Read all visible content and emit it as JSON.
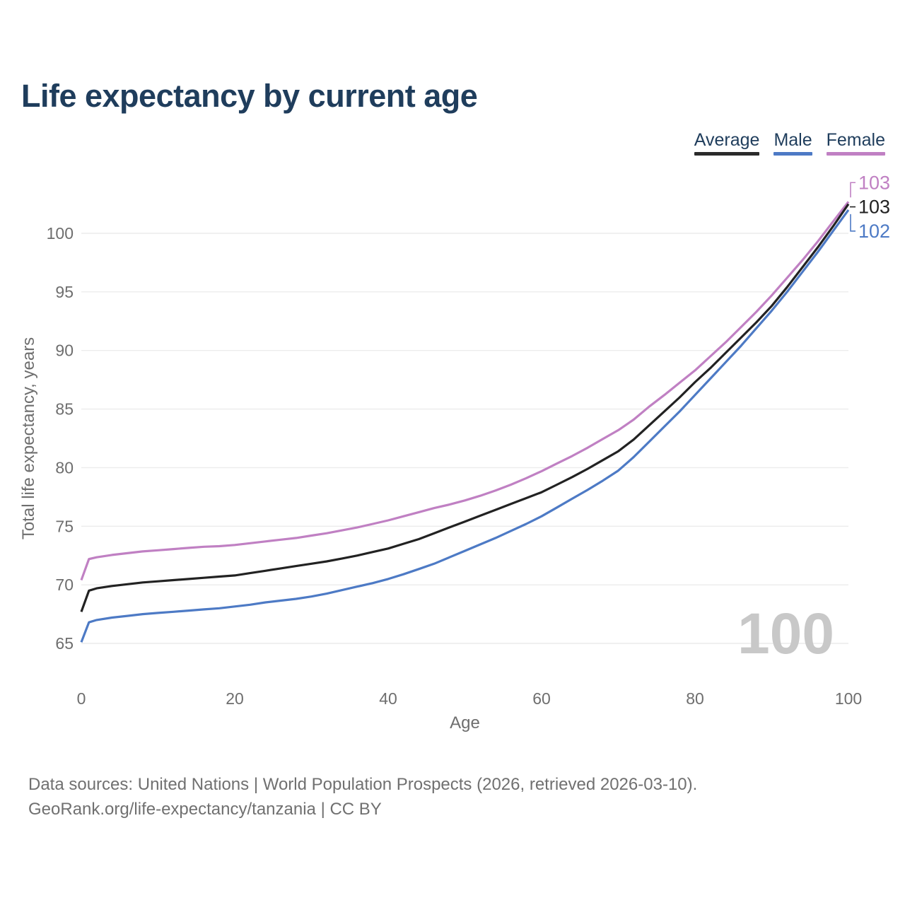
{
  "title": "Life expectancy by current age",
  "legend": {
    "items": [
      {
        "label": "Average",
        "color": "#2b2b2b"
      },
      {
        "label": "Male",
        "color": "#4d7ac5"
      },
      {
        "label": "Female",
        "color": "#c080c3"
      }
    ]
  },
  "chart_data": {
    "type": "line",
    "title": "Life expectancy by current age",
    "xlabel": "Age",
    "ylabel": "Total life expectancy, years",
    "xlim": [
      0,
      100
    ],
    "ylim": [
      65,
      100
    ],
    "x_ticks": [
      0,
      20,
      40,
      60,
      80,
      100
    ],
    "y_ticks": [
      65,
      70,
      75,
      80,
      85,
      90,
      95,
      100
    ],
    "grid": "horizontal",
    "legend_position": "top-right",
    "age_counter": "100",
    "x": [
      0,
      1,
      2,
      4,
      6,
      8,
      10,
      12,
      14,
      16,
      18,
      20,
      22,
      24,
      26,
      28,
      30,
      32,
      34,
      36,
      38,
      40,
      42,
      44,
      46,
      48,
      50,
      52,
      54,
      56,
      58,
      60,
      62,
      64,
      66,
      68,
      70,
      72,
      74,
      76,
      78,
      80,
      82,
      84,
      86,
      88,
      90,
      92,
      94,
      96,
      98,
      100
    ],
    "series": [
      {
        "name": "Average",
        "color": "#222222",
        "end_label": "103",
        "values": [
          67.7,
          69.5,
          69.7,
          69.9,
          70.05,
          70.2,
          70.3,
          70.4,
          70.5,
          70.6,
          70.7,
          70.8,
          71.0,
          71.2,
          71.4,
          71.6,
          71.8,
          72.0,
          72.25,
          72.5,
          72.8,
          73.1,
          73.5,
          73.9,
          74.4,
          74.9,
          75.4,
          75.9,
          76.4,
          76.9,
          77.4,
          77.9,
          78.55,
          79.2,
          79.9,
          80.65,
          81.4,
          82.4,
          83.6,
          84.8,
          86.0,
          87.3,
          88.5,
          89.8,
          91.1,
          92.4,
          93.8,
          95.4,
          97.1,
          98.8,
          100.6,
          102.5
        ]
      },
      {
        "name": "Male",
        "color": "#4d7ac5",
        "end_label": "102",
        "values": [
          65.1,
          66.8,
          67.0,
          67.2,
          67.35,
          67.5,
          67.6,
          67.7,
          67.8,
          67.9,
          68.0,
          68.15,
          68.3,
          68.5,
          68.65,
          68.8,
          69.0,
          69.25,
          69.55,
          69.85,
          70.15,
          70.5,
          70.9,
          71.35,
          71.8,
          72.35,
          72.9,
          73.45,
          74.0,
          74.6,
          75.2,
          75.85,
          76.6,
          77.35,
          78.1,
          78.9,
          79.75,
          80.9,
          82.2,
          83.5,
          84.8,
          86.2,
          87.6,
          89.0,
          90.4,
          91.9,
          93.4,
          95.0,
          96.7,
          98.4,
          100.2,
          102.0
        ]
      },
      {
        "name": "Female",
        "color": "#c080c3",
        "end_label": "103",
        "values": [
          70.4,
          72.2,
          72.35,
          72.55,
          72.7,
          72.85,
          72.95,
          73.05,
          73.15,
          73.25,
          73.3,
          73.4,
          73.55,
          73.7,
          73.85,
          74.0,
          74.2,
          74.4,
          74.65,
          74.9,
          75.2,
          75.5,
          75.85,
          76.2,
          76.55,
          76.85,
          77.2,
          77.6,
          78.05,
          78.55,
          79.1,
          79.7,
          80.35,
          81.0,
          81.7,
          82.45,
          83.2,
          84.1,
          85.2,
          86.2,
          87.25,
          88.3,
          89.5,
          90.7,
          92.0,
          93.3,
          94.7,
          96.2,
          97.7,
          99.3,
          101.0,
          102.7
        ]
      }
    ],
    "colors": {
      "title_text": "#1f3d5c",
      "tick_text": "#6e6e6e",
      "gridline": "#ececec",
      "watermark": "#c8c8c8"
    }
  },
  "footer": {
    "line1": "Data sources: United Nations | World Population Prospects (2026, retrieved 2026-03-10).",
    "line2": "GeoRank.org/life-expectancy/tanzania | CC BY"
  }
}
